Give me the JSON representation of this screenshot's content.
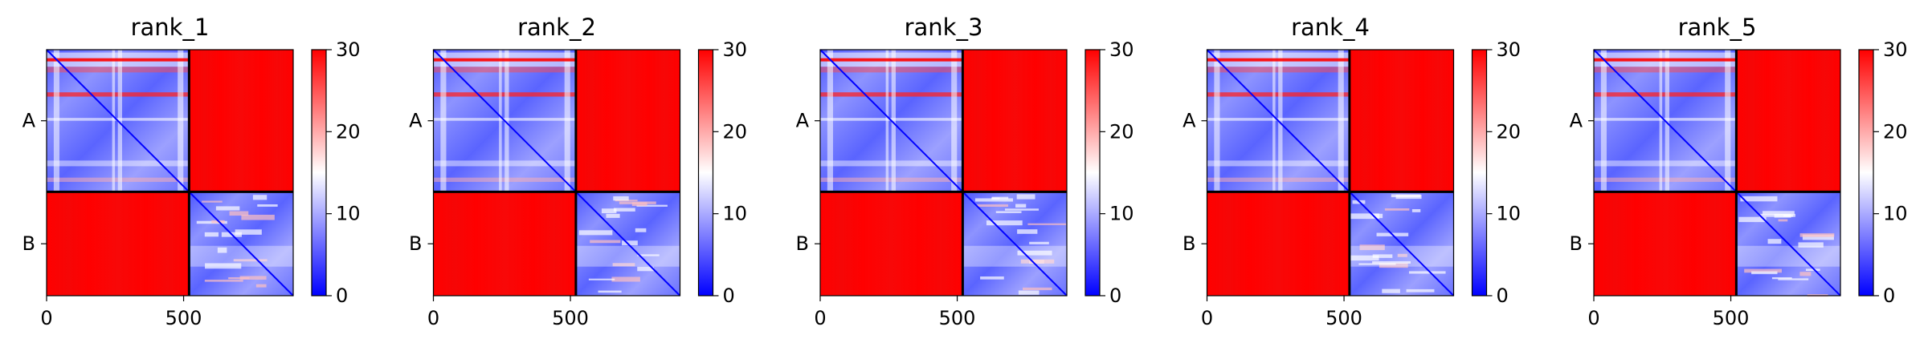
{
  "chart_data": {
    "type": "heatmap",
    "panels": [
      {
        "title": "rank_1",
        "chains": [
          "A",
          "B"
        ],
        "xticks": [
          0,
          500
        ],
        "colorbar_ticks": [
          0,
          10,
          20,
          30
        ],
        "vmin": 0,
        "vmax": 30,
        "chain_boundary": 520,
        "length": 900
      },
      {
        "title": "rank_2",
        "chains": [
          "A",
          "B"
        ],
        "xticks": [
          0,
          500
        ],
        "colorbar_ticks": [
          0,
          10,
          20,
          30
        ],
        "vmin": 0,
        "vmax": 30,
        "chain_boundary": 520,
        "length": 900
      },
      {
        "title": "rank_3",
        "chains": [
          "A",
          "B"
        ],
        "xticks": [
          0,
          500
        ],
        "colorbar_ticks": [
          0,
          10,
          20,
          30
        ],
        "vmin": 0,
        "vmax": 30,
        "chain_boundary": 520,
        "length": 900
      },
      {
        "title": "rank_4",
        "chains": [
          "A",
          "B"
        ],
        "xticks": [
          0,
          500
        ],
        "colorbar_ticks": [
          0,
          10,
          20,
          30
        ],
        "vmin": 0,
        "vmax": 30,
        "chain_boundary": 520,
        "length": 900
      },
      {
        "title": "rank_5",
        "chains": [
          "A",
          "B"
        ],
        "xticks": [
          0,
          500
        ],
        "colorbar_ticks": [
          0,
          10,
          20,
          30
        ],
        "vmin": 0,
        "vmax": 30,
        "chain_boundary": 520,
        "length": 900
      }
    ],
    "colormap": {
      "low": "#0000ff",
      "mid": "#ffffff",
      "high": "#ff0000"
    },
    "grid": false
  }
}
